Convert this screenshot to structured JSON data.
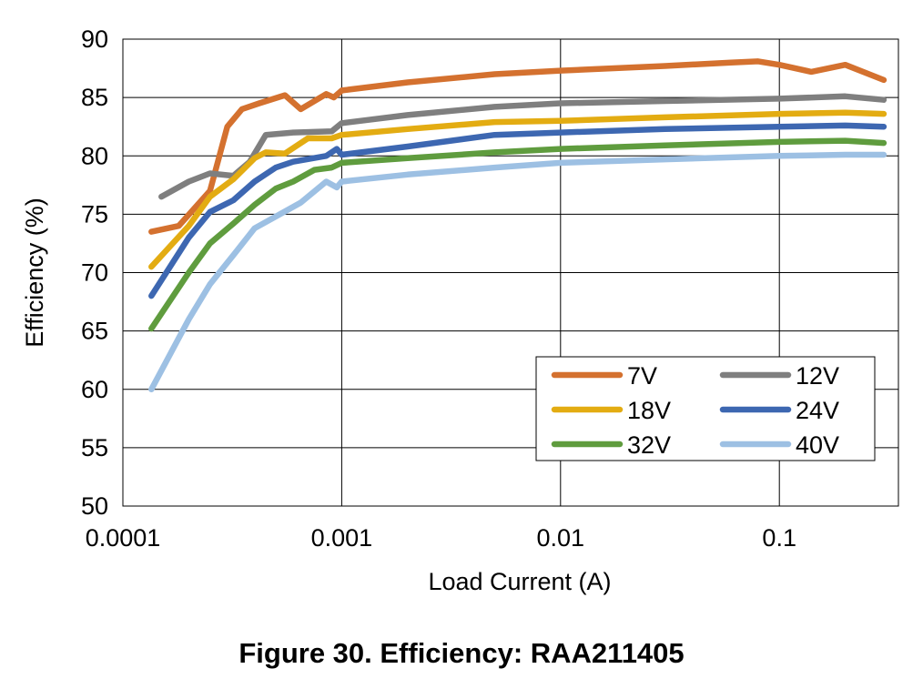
{
  "caption": "Figure 30. Efficiency: RAA211405",
  "chart_data": {
    "type": "line",
    "xlabel": "Load Current (A)",
    "ylabel": "Efficiency (%)",
    "xscale": "log",
    "xlim": [
      0.0001,
      0.35
    ],
    "ylim": [
      50,
      90
    ],
    "x_ticks": [
      "0.0001",
      "0.001",
      "0.01",
      "0.1"
    ],
    "x_tick_values": [
      0.0001,
      0.001,
      0.01,
      0.1
    ],
    "y_ticks": [
      50,
      55,
      60,
      65,
      70,
      75,
      80,
      85,
      90
    ],
    "grid": true,
    "legend_position": "lower-right",
    "series": [
      {
        "name": "7V",
        "color": "#d4712f",
        "x": [
          0.000135,
          0.00018,
          0.00025,
          0.0003,
          0.00035,
          0.00042,
          0.00055,
          0.00065,
          0.00085,
          0.00092,
          0.001,
          0.002,
          0.005,
          0.01,
          0.03,
          0.06,
          0.08,
          0.1,
          0.14,
          0.2,
          0.3
        ],
        "y": [
          73.5,
          74,
          77,
          82.5,
          84,
          84.5,
          85.2,
          84,
          85.3,
          85,
          85.6,
          86.3,
          87,
          87.3,
          87.7,
          88,
          88.1,
          87.8,
          87.2,
          87.8,
          86.5
        ]
      },
      {
        "name": "12V",
        "color": "#7f7f7f",
        "x": [
          0.00015,
          0.0002,
          0.00025,
          0.00032,
          0.00038,
          0.00045,
          0.0006,
          0.0009,
          0.001,
          0.002,
          0.005,
          0.01,
          0.03,
          0.1,
          0.2,
          0.3
        ],
        "y": [
          76.5,
          77.8,
          78.5,
          78.3,
          79.5,
          81.8,
          82,
          82.1,
          82.8,
          83.5,
          84.2,
          84.5,
          84.7,
          84.9,
          85.1,
          84.8
        ]
      },
      {
        "name": "18V",
        "color": "#e3ac12",
        "x": [
          0.000135,
          0.0002,
          0.00025,
          0.00032,
          0.0004,
          0.00045,
          0.00055,
          0.0007,
          0.0009,
          0.001,
          0.002,
          0.005,
          0.01,
          0.03,
          0.1,
          0.2,
          0.3
        ],
        "y": [
          70.5,
          74,
          76.5,
          78,
          79.8,
          80.3,
          80.2,
          81.5,
          81.5,
          81.8,
          82.3,
          82.9,
          83,
          83.3,
          83.6,
          83.7,
          83.6
        ]
      },
      {
        "name": "24V",
        "color": "#3d67b1",
        "x": [
          0.000135,
          0.0002,
          0.00025,
          0.00032,
          0.0004,
          0.0005,
          0.0006,
          0.00085,
          0.00095,
          0.001,
          0.002,
          0.005,
          0.01,
          0.03,
          0.1,
          0.2,
          0.3
        ],
        "y": [
          68,
          73,
          75.2,
          76.2,
          77.8,
          79,
          79.5,
          80,
          80.6,
          80.1,
          80.8,
          81.8,
          82,
          82.3,
          82.5,
          82.6,
          82.5
        ]
      },
      {
        "name": "32V",
        "color": "#5f9c3e",
        "x": [
          0.000135,
          0.0002,
          0.00025,
          0.00032,
          0.0004,
          0.0005,
          0.0006,
          0.00075,
          0.0009,
          0.001,
          0.002,
          0.005,
          0.01,
          0.03,
          0.1,
          0.2,
          0.3
        ],
        "y": [
          65.2,
          70,
          72.5,
          74.2,
          75.8,
          77.2,
          77.8,
          78.8,
          79,
          79.4,
          79.8,
          80.3,
          80.6,
          80.9,
          81.2,
          81.3,
          81.1
        ]
      },
      {
        "name": "40V",
        "color": "#9dc0e3",
        "x": [
          0.000135,
          0.0002,
          0.00025,
          0.00032,
          0.0004,
          0.0005,
          0.00065,
          0.00085,
          0.00095,
          0.001,
          0.002,
          0.005,
          0.01,
          0.03,
          0.1,
          0.2,
          0.3
        ],
        "y": [
          60,
          66,
          69,
          71.5,
          73.8,
          74.8,
          76,
          77.8,
          77.3,
          77.8,
          78.4,
          79,
          79.4,
          79.7,
          80,
          80.1,
          80.1
        ]
      }
    ]
  }
}
